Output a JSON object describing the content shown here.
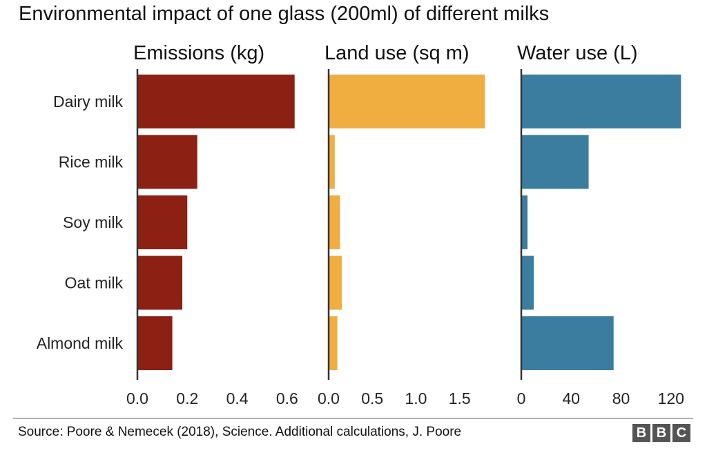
{
  "chart_data": {
    "type": "bar",
    "orientation": "horizontal",
    "title": "Environmental impact of one glass (200ml) of different milks",
    "categories": [
      "Dairy milk",
      "Rice milk",
      "Soy milk",
      "Oat milk",
      "Almond milk"
    ],
    "panels": [
      {
        "title": "Emissions (kg)",
        "color": "#8b2013",
        "values": [
          0.63,
          0.24,
          0.2,
          0.18,
          0.14
        ],
        "xlim": [
          0,
          0.7
        ],
        "ticks": [
          0.0,
          0.2,
          0.4,
          0.6
        ],
        "tick_labels": [
          "0.0",
          "0.2",
          "0.4",
          "0.6"
        ]
      },
      {
        "title": "Land use (sq m)",
        "color": "#f0ad40",
        "values": [
          1.79,
          0.07,
          0.13,
          0.15,
          0.1
        ],
        "xlim": [
          0,
          2.0
        ],
        "ticks": [
          0.0,
          0.5,
          1.0,
          1.5
        ],
        "tick_labels": [
          "0.0",
          "0.5",
          "1.0",
          "1.5"
        ]
      },
      {
        "title": "Water use (L)",
        "color": "#3a7d9f",
        "values": [
          128,
          54,
          5,
          10,
          74
        ],
        "xlim": [
          0,
          140
        ],
        "ticks": [
          0,
          40,
          80,
          120
        ],
        "tick_labels": [
          "0",
          "40",
          "80",
          "120"
        ]
      }
    ],
    "grid": false,
    "legend": "none"
  },
  "footer": {
    "source": "Source: Poore & Nemecek (2018), Science. Additional calculations, J. Poore",
    "logo_letters": [
      "B",
      "B",
      "C"
    ]
  }
}
